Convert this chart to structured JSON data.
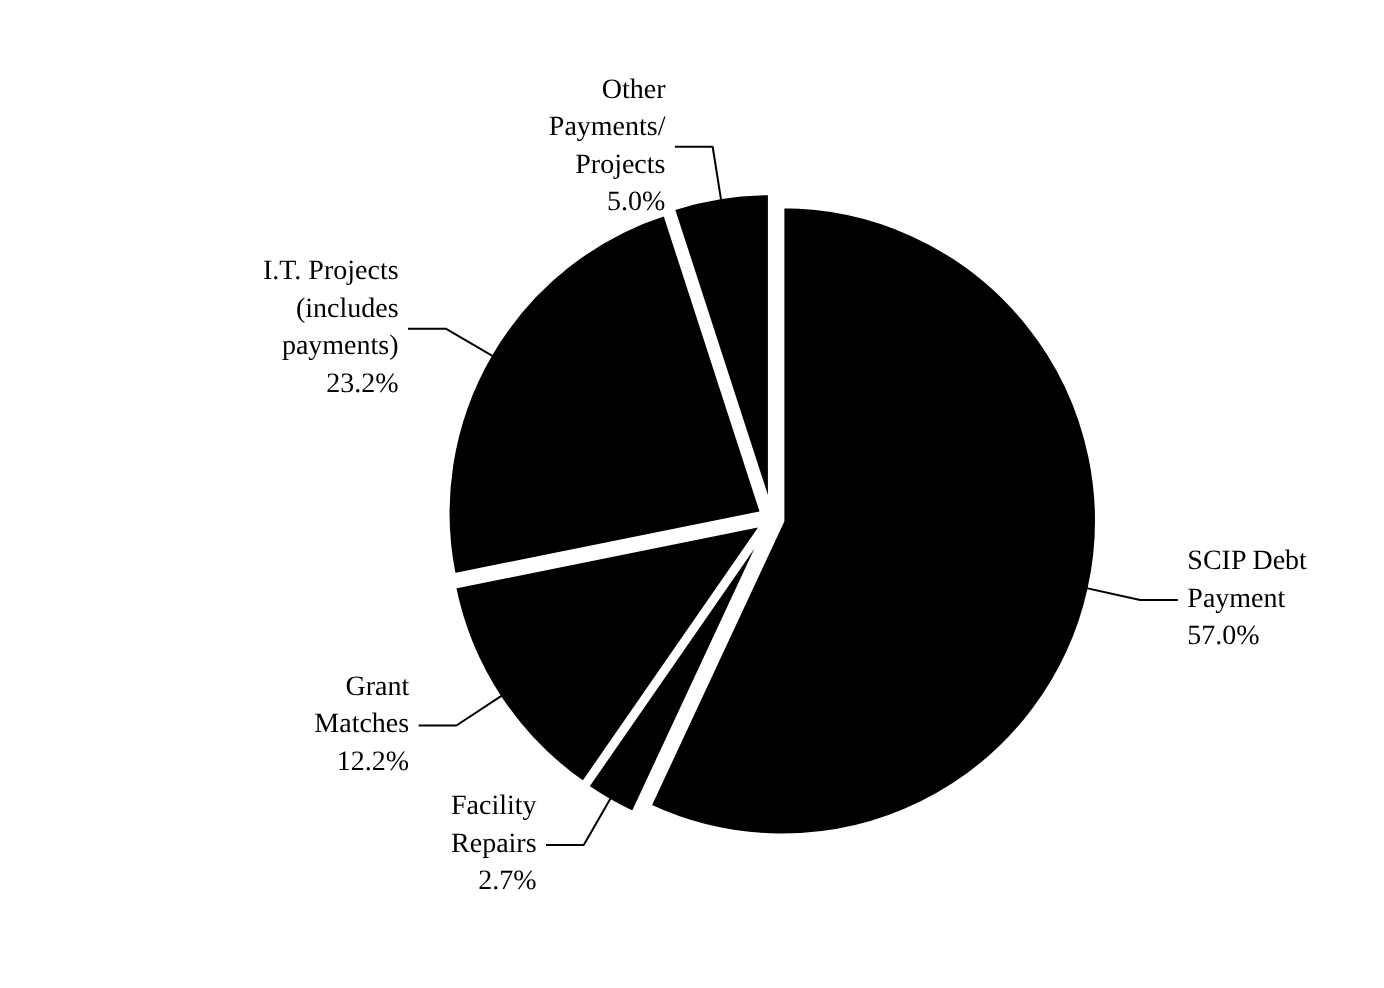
{
  "chart_data": {
    "type": "pie",
    "categories": [
      "SCIP Debt\nPayment",
      "Facility\nRepairs",
      "Grant\nMatches",
      "I.T. Projects\n(includes\npayments)",
      "Other\nPayments/\nProjects"
    ],
    "values": [
      57.0,
      2.7,
      12.2,
      23.2,
      5.0
    ],
    "colors": [
      "#000000",
      "#000000",
      "#000000",
      "#000000",
      "#000000"
    ],
    "value_labels": [
      "57.0%",
      "2.7%",
      "12.2%",
      "23.2%",
      "5.0%"
    ]
  }
}
